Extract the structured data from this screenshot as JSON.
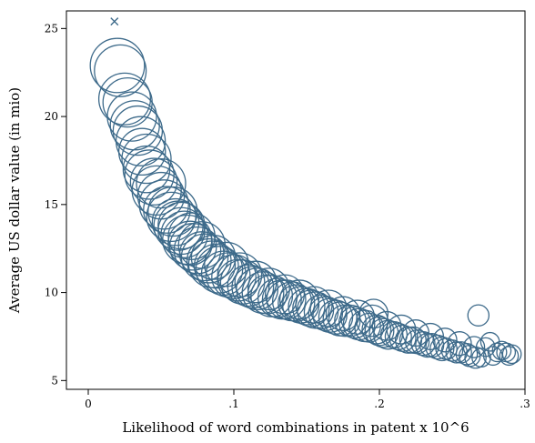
{
  "chart_data": {
    "type": "scatter",
    "xlabel": "Likelihood of word combinations in patent x 10^6",
    "ylabel": "Average US dollar value (in mio)",
    "xlim": [
      -0.015,
      0.3
    ],
    "ylim": [
      4.5,
      26
    ],
    "xticks": [
      0,
      0.1,
      0.2,
      0.3
    ],
    "xtick_labels": [
      "0",
      ".1",
      ".2",
      ".3"
    ],
    "yticks": [
      5,
      10,
      15,
      20,
      25
    ],
    "ytick_labels": [
      "5",
      "10",
      "15",
      "20",
      "25"
    ],
    "grid": false,
    "legend": "none",
    "marker_color": "#3d6a8a",
    "outlier": {
      "x": 0.018,
      "y": 25.4,
      "marker": "x"
    },
    "series": [
      {
        "marker": "hollow-circle (size proportional to weight)",
        "points": [
          [
            0.02,
            22.9,
            1.7
          ],
          [
            0.022,
            22.6,
            1.6
          ],
          [
            0.025,
            21.0,
            1.6
          ],
          [
            0.027,
            20.8,
            1.5
          ],
          [
            0.03,
            20.0,
            1.5
          ],
          [
            0.032,
            19.5,
            1.5
          ],
          [
            0.034,
            19.2,
            1.5
          ],
          [
            0.036,
            18.6,
            1.5
          ],
          [
            0.037,
            18.0,
            1.4
          ],
          [
            0.04,
            17.6,
            1.5
          ],
          [
            0.04,
            17.0,
            1.4
          ],
          [
            0.042,
            16.7,
            1.5
          ],
          [
            0.045,
            16.3,
            1.4
          ],
          [
            0.047,
            15.8,
            1.5
          ],
          [
            0.05,
            15.5,
            1.4
          ],
          [
            0.052,
            15.0,
            1.5
          ],
          [
            0.054,
            14.7,
            1.4
          ],
          [
            0.057,
            14.3,
            1.5
          ],
          [
            0.06,
            14.0,
            1.4
          ],
          [
            0.062,
            13.8,
            1.5
          ],
          [
            0.064,
            13.5,
            1.4
          ],
          [
            0.066,
            13.3,
            1.4
          ],
          [
            0.068,
            13.0,
            1.5
          ],
          [
            0.07,
            12.8,
            1.3
          ],
          [
            0.072,
            12.6,
            1.4
          ],
          [
            0.075,
            12.4,
            1.4
          ],
          [
            0.078,
            12.2,
            1.3
          ],
          [
            0.08,
            12.0,
            1.4
          ],
          [
            0.083,
            11.8,
            1.3
          ],
          [
            0.085,
            11.6,
            1.4
          ],
          [
            0.088,
            11.5,
            1.3
          ],
          [
            0.09,
            11.3,
            1.4
          ],
          [
            0.093,
            11.1,
            1.3
          ],
          [
            0.096,
            11.0,
            1.3
          ],
          [
            0.1,
            10.9,
            1.3
          ],
          [
            0.103,
            10.7,
            1.2
          ],
          [
            0.106,
            10.6,
            1.3
          ],
          [
            0.11,
            10.4,
            1.2
          ],
          [
            0.113,
            10.3,
            1.2
          ],
          [
            0.116,
            10.2,
            1.2
          ],
          [
            0.12,
            10.0,
            1.2
          ],
          [
            0.123,
            9.9,
            1.1
          ],
          [
            0.126,
            9.8,
            1.2
          ],
          [
            0.13,
            9.7,
            1.1
          ],
          [
            0.133,
            9.6,
            1.1
          ],
          [
            0.136,
            9.6,
            1.1
          ],
          [
            0.14,
            9.5,
            1.1
          ],
          [
            0.143,
            9.4,
            1.0
          ],
          [
            0.146,
            9.3,
            1.0
          ],
          [
            0.15,
            9.2,
            1.0
          ],
          [
            0.153,
            9.1,
            1.0
          ],
          [
            0.156,
            9.0,
            1.0
          ],
          [
            0.16,
            8.9,
            0.9
          ],
          [
            0.163,
            8.8,
            0.9
          ],
          [
            0.166,
            8.7,
            0.9
          ],
          [
            0.17,
            8.6,
            0.9
          ],
          [
            0.173,
            8.5,
            0.9
          ],
          [
            0.176,
            8.4,
            0.8
          ],
          [
            0.18,
            8.4,
            0.8
          ],
          [
            0.183,
            8.3,
            0.8
          ],
          [
            0.186,
            8.2,
            0.8
          ],
          [
            0.19,
            8.1,
            0.8
          ],
          [
            0.193,
            8.0,
            0.7
          ],
          [
            0.196,
            8.8,
            0.7
          ],
          [
            0.198,
            7.9,
            0.7
          ],
          [
            0.2,
            7.8,
            0.7
          ],
          [
            0.203,
            7.7,
            0.7
          ],
          [
            0.206,
            7.6,
            0.7
          ],
          [
            0.21,
            7.6,
            0.6
          ],
          [
            0.213,
            7.5,
            0.6
          ],
          [
            0.216,
            7.4,
            0.6
          ],
          [
            0.22,
            7.3,
            0.6
          ],
          [
            0.223,
            7.3,
            0.6
          ],
          [
            0.226,
            7.2,
            0.5
          ],
          [
            0.23,
            7.1,
            0.5
          ],
          [
            0.233,
            7.0,
            0.5
          ],
          [
            0.236,
            7.0,
            0.5
          ],
          [
            0.24,
            6.9,
            0.5
          ],
          [
            0.243,
            6.8,
            0.5
          ],
          [
            0.246,
            6.8,
            0.4
          ],
          [
            0.25,
            6.7,
            0.4
          ],
          [
            0.253,
            6.6,
            0.4
          ],
          [
            0.256,
            6.6,
            0.4
          ],
          [
            0.26,
            6.5,
            0.4
          ],
          [
            0.262,
            6.4,
            0.4
          ],
          [
            0.266,
            6.3,
            0.4
          ],
          [
            0.268,
            8.7,
            0.4
          ],
          [
            0.27,
            6.3,
            0.3
          ],
          [
            0.273,
            6.9,
            0.3
          ],
          [
            0.276,
            7.2,
            0.3
          ],
          [
            0.278,
            6.4,
            0.3
          ],
          [
            0.281,
            6.6,
            0.3
          ],
          [
            0.284,
            6.7,
            0.3
          ],
          [
            0.287,
            6.6,
            0.3
          ],
          [
            0.289,
            6.4,
            0.3
          ],
          [
            0.291,
            6.5,
            0.3
          ],
          [
            0.05,
            16.2,
            1.5
          ],
          [
            0.058,
            14.6,
            1.5
          ],
          [
            0.064,
            13.8,
            1.4
          ],
          [
            0.071,
            13.2,
            1.4
          ],
          [
            0.078,
            12.7,
            1.4
          ],
          [
            0.086,
            12.0,
            1.3
          ],
          [
            0.095,
            11.6,
            1.3
          ],
          [
            0.104,
            11.0,
            1.3
          ],
          [
            0.115,
            10.6,
            1.2
          ],
          [
            0.124,
            10.2,
            1.2
          ],
          [
            0.135,
            9.9,
            1.1
          ],
          [
            0.145,
            9.6,
            1.1
          ],
          [
            0.155,
            9.3,
            1.0
          ],
          [
            0.165,
            9.1,
            1.0
          ],
          [
            0.175,
            8.8,
            0.9
          ],
          [
            0.185,
            8.6,
            0.9
          ],
          [
            0.195,
            8.4,
            0.8
          ],
          [
            0.205,
            8.1,
            0.7
          ],
          [
            0.215,
            7.9,
            0.7
          ],
          [
            0.225,
            7.7,
            0.6
          ],
          [
            0.235,
            7.5,
            0.6
          ],
          [
            0.245,
            7.3,
            0.5
          ],
          [
            0.255,
            7.1,
            0.5
          ],
          [
            0.265,
            6.9,
            0.4
          ]
        ]
      }
    ]
  }
}
